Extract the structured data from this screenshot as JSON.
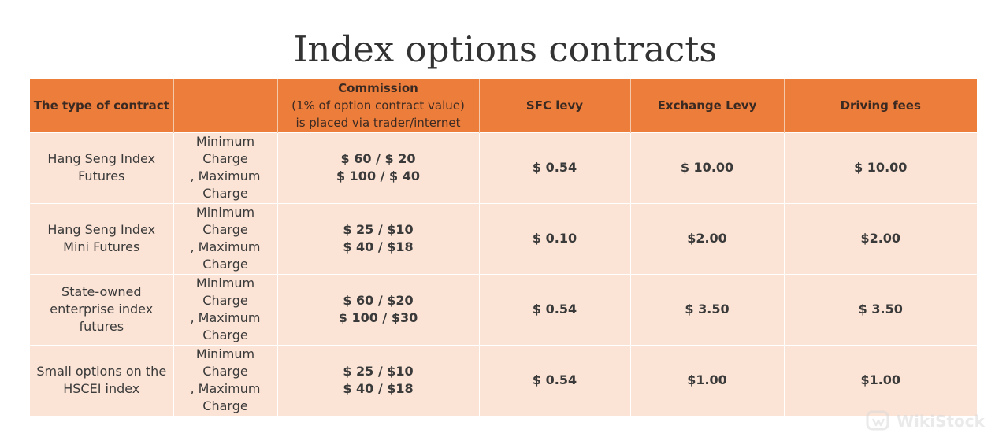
{
  "title": "Index options contracts",
  "table": {
    "headers": {
      "contract_type": "The type of contract",
      "charge_kind": "",
      "commission_title": "Commission",
      "commission_line1": "(1% of option contract value)",
      "commission_line2": "is placed via trader/internet",
      "sfc_levy": "SFC levy",
      "exchange_levy": "Exchange Levy",
      "driving_fees": "Driving fees"
    },
    "rows": [
      {
        "contract": "Hang Seng Index Futures",
        "charge_kind": [
          "Minimum",
          "Charge",
          ", Maximum",
          "Charge"
        ],
        "commission": [
          "$ 60 / $ 20",
          "$ 100 / $ 40"
        ],
        "sfc_levy": "$ 0.54",
        "exchange_levy": "$ 10.00",
        "driving_fees": "$ 10.00"
      },
      {
        "contract": "Hang Seng Index Mini Futures",
        "charge_kind": [
          "Minimum",
          "Charge",
          ", Maximum",
          "Charge"
        ],
        "commission": [
          "$ 25 / $10",
          "$ 40 / $18"
        ],
        "sfc_levy": "$ 0.10",
        "exchange_levy": "$2.00",
        "driving_fees": "$2.00"
      },
      {
        "contract": "State-owned enterprise index futures",
        "charge_kind": [
          "Minimum",
          "Charge",
          ", Maximum",
          "Charge"
        ],
        "commission": [
          "$ 60 / $20",
          "$ 100 / $30"
        ],
        "sfc_levy": "$ 0.54",
        "exchange_levy": "$ 3.50",
        "driving_fees": "$ 3.50"
      },
      {
        "contract": "Small options on the HSCEI index",
        "charge_kind": [
          "Minimum",
          "Charge",
          ", Maximum",
          "Charge"
        ],
        "commission": [
          "$ 25 / $10",
          "$ 40 / $18"
        ],
        "sfc_levy": "$ 0.54",
        "exchange_levy": "$1.00",
        "driving_fees": "$1.00"
      }
    ]
  },
  "watermark": {
    "text": "WikiStock",
    "icon": "wikistock-logo-icon"
  },
  "colors": {
    "header_bg": "#ed7d3b",
    "row_bg": "#fbe3d5"
  }
}
